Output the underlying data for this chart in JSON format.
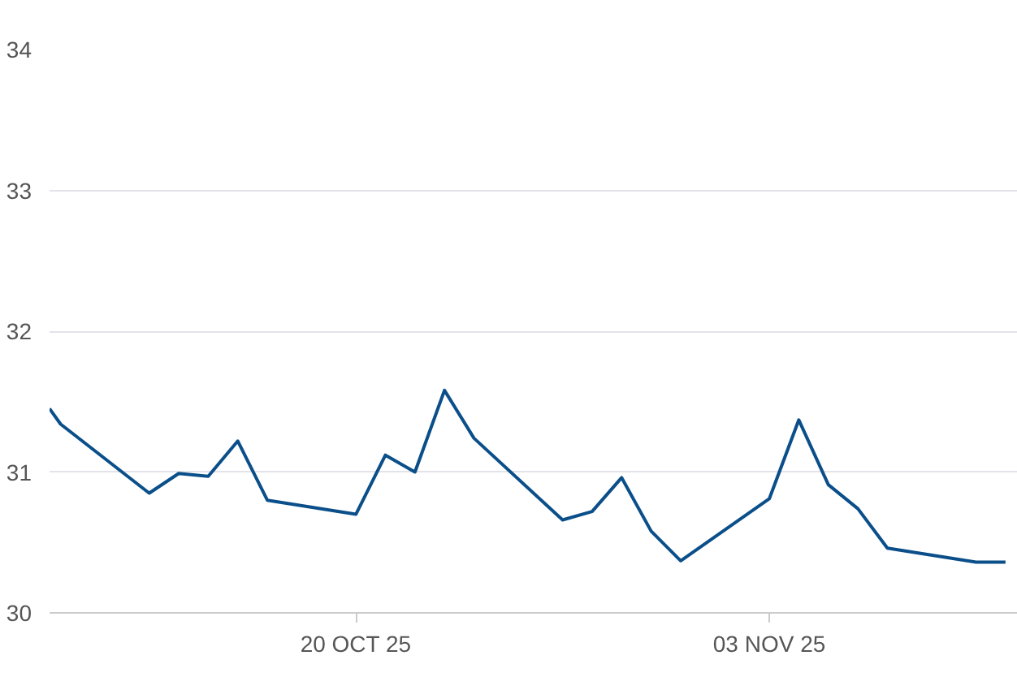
{
  "chart_data": {
    "type": "line",
    "x": [
      "2025-10-09T15:00",
      "2025-10-10",
      "2025-10-13",
      "2025-10-14",
      "2025-10-15",
      "2025-10-16",
      "2025-10-17",
      "2025-10-20",
      "2025-10-21",
      "2025-10-22",
      "2025-10-23",
      "2025-10-24",
      "2025-10-27",
      "2025-10-28",
      "2025-10-29",
      "2025-10-30",
      "2025-10-31",
      "2025-11-03",
      "2025-11-04",
      "2025-11-05",
      "2025-11-06",
      "2025-11-07",
      "2025-11-10",
      "2025-11-11"
    ],
    "series": [
      {
        "color": "#0b4f8a",
        "values": [
          31.45,
          31.34,
          30.85,
          30.99,
          30.97,
          31.22,
          30.8,
          30.7,
          31.12,
          31.0,
          31.58,
          31.24,
          30.66,
          30.72,
          30.96,
          30.58,
          30.37,
          30.81,
          31.37,
          30.91,
          30.74,
          30.46,
          30.36,
          30.36
        ]
      }
    ],
    "xlim": [
      "2025-10-09T15:00",
      "2025-11-11T10:00"
    ],
    "xticks": [
      {
        "value": "2025-10-20",
        "label": "20 OCT 25"
      },
      {
        "value": "2025-11-03",
        "label": "03 NOV 25"
      }
    ],
    "ylim": [
      30,
      34
    ],
    "yticks": [
      30,
      31,
      32,
      33,
      34
    ],
    "grid": "y",
    "marker": "none",
    "line_style": "solid"
  }
}
